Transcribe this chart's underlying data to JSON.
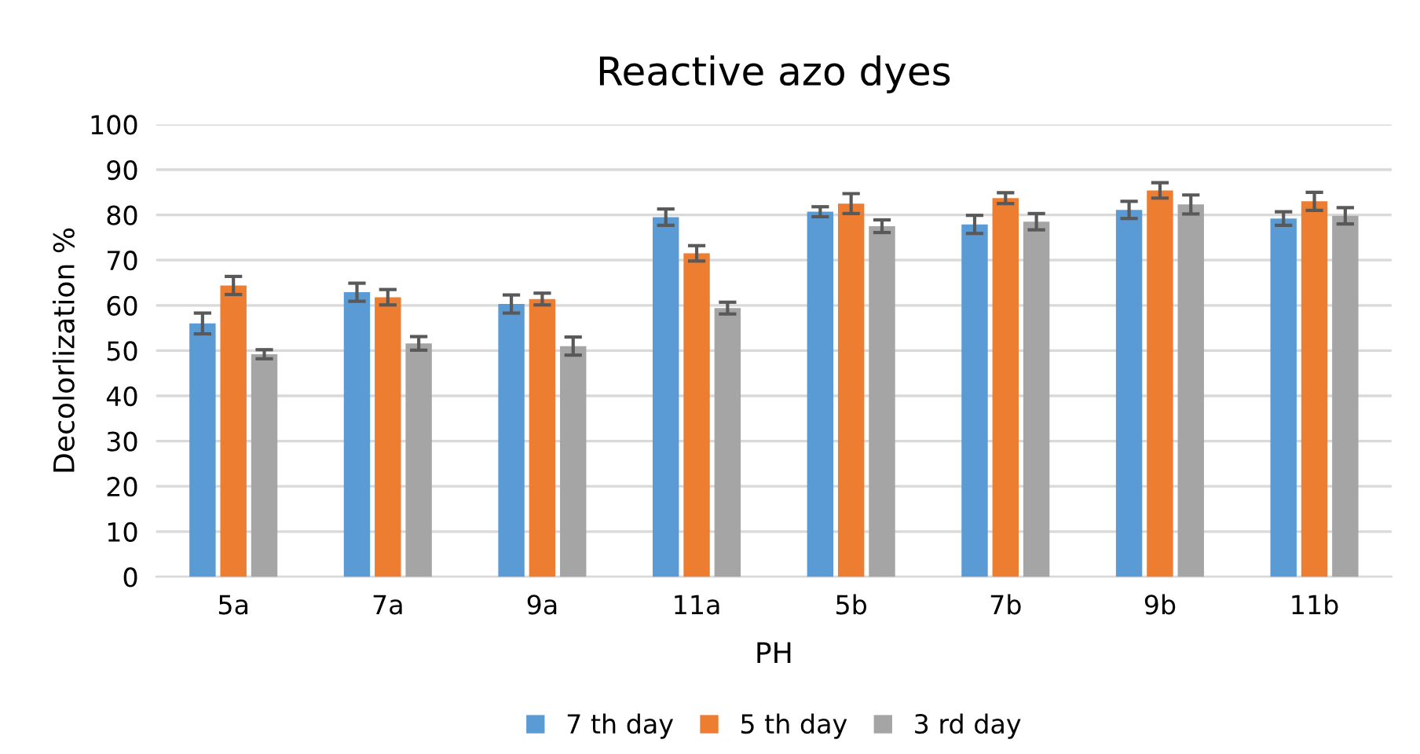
{
  "chart_data": {
    "type": "bar",
    "title": "Reactive azo dyes",
    "xlabel": "PH",
    "ylabel": "Decolorlization %",
    "categories": [
      "5a",
      "7a",
      "9a",
      "11a",
      "5b",
      "7b",
      "9b",
      "11b"
    ],
    "series": [
      {
        "name": "7 th day",
        "color": "#5b9bd5",
        "values": [
          56.0,
          62.9,
          60.3,
          79.5,
          80.7,
          77.9,
          81.1,
          79.2
        ],
        "errors": [
          2.3,
          2.0,
          2.0,
          1.8,
          1.1,
          2.0,
          1.9,
          1.5
        ]
      },
      {
        "name": "5 th day",
        "color": "#ed7d31",
        "values": [
          64.4,
          61.8,
          61.4,
          71.5,
          82.5,
          83.7,
          85.4,
          83.0
        ],
        "errors": [
          2.0,
          1.7,
          1.3,
          1.7,
          2.2,
          1.2,
          1.7,
          2.0
        ]
      },
      {
        "name": "3 rd day",
        "color": "#a5a5a5",
        "values": [
          49.2,
          51.6,
          51.0,
          59.4,
          77.5,
          78.5,
          82.3,
          79.8
        ],
        "errors": [
          1.0,
          1.5,
          2.0,
          1.3,
          1.4,
          1.8,
          2.1,
          1.8
        ]
      }
    ],
    "ylim": [
      0,
      100
    ],
    "yticks": [
      0,
      10,
      20,
      30,
      40,
      50,
      60,
      70,
      80,
      90,
      100
    ],
    "grid": "y",
    "legend": "bottom"
  }
}
